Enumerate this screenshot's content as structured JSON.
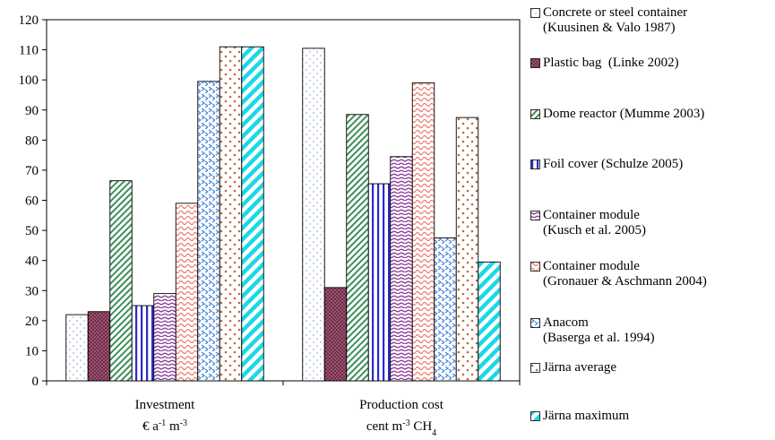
{
  "chart_data": {
    "type": "bar",
    "categories": [
      "Investment\n€ a-1 m-3",
      "Production cost\ncent m-3 CH4"
    ],
    "category_labels": [
      {
        "line1": "Investment",
        "line2_parts": [
          {
            "t": "€ a",
            "sup": false
          },
          {
            "t": "-1",
            "sup": true
          },
          {
            "t": " m",
            "sup": false
          },
          {
            "t": "-3",
            "sup": true
          }
        ]
      },
      {
        "line1": "Production cost",
        "line2_parts": [
          {
            "t": "cent m",
            "sup": false
          },
          {
            "t": "-3",
            "sup": true
          },
          {
            "t": " CH",
            "sup": false
          },
          {
            "t": "4",
            "sub": true
          }
        ]
      }
    ],
    "series": [
      {
        "name": "Concrete or steel container\n(Kuusinen & Valo 1987)",
        "values": [
          22,
          110.5
        ],
        "pattern": "dots-sparse"
      },
      {
        "name": "Plastic bag  (Linke 2002)",
        "values": [
          23,
          31
        ],
        "pattern": "crosshatch-maroon"
      },
      {
        "name": "Dome reactor (Mumme 2003)",
        "values": [
          66.5,
          88.5
        ],
        "pattern": "diag-green"
      },
      {
        "name": "Foil cover (Schulze 2005)",
        "values": [
          25,
          65.5
        ],
        "pattern": "vstripe-blue"
      },
      {
        "name": "Container module\n(Kusch et al. 2005)",
        "values": [
          29,
          74.5
        ],
        "pattern": "zigzag-purple"
      },
      {
        "name": "Container module\n(Gronauer & Aschmann 2004)",
        "values": [
          59,
          99
        ],
        "pattern": "wave-red"
      },
      {
        "name": "Anacom\n(Baserga et al. 1994)",
        "values": [
          99.5,
          47.5
        ],
        "pattern": "chevron-blue"
      },
      {
        "name": "Järna average",
        "values": [
          111,
          87.5
        ],
        "pattern": "dots-brown"
      },
      {
        "name": "Järna maximum",
        "values": [
          111,
          39.5
        ],
        "pattern": "diag-cyan"
      }
    ],
    "ylim": [
      0,
      120
    ],
    "yticks": [
      0,
      10,
      20,
      30,
      40,
      50,
      60,
      70,
      80,
      90,
      100,
      110,
      120
    ],
    "grid": false,
    "legend_placement": "right"
  }
}
